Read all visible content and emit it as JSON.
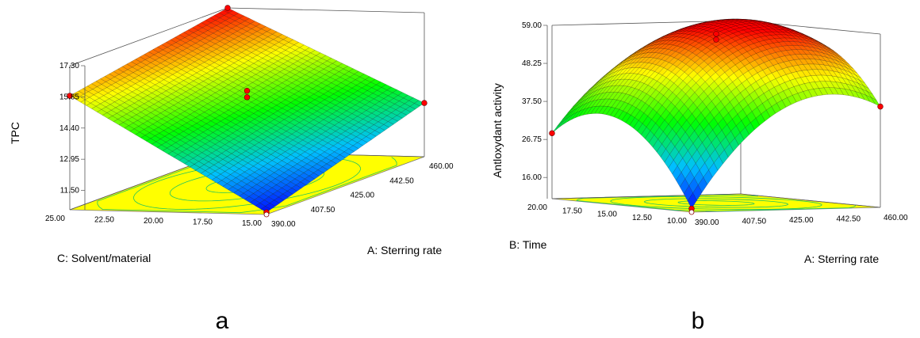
{
  "panels": [
    {
      "label": "a"
    },
    {
      "label": "b"
    }
  ],
  "chart_data": [
    {
      "type": "surface3d",
      "title": "",
      "zlabel": "TPC",
      "xlabel": "A: Sterring rate",
      "ylabel": "C: Solvent/material",
      "x_ticks": [
        "390.00",
        "407.50",
        "425.00",
        "442.50",
        "460.00"
      ],
      "y_ticks": [
        "15.00",
        "17.50",
        "20.00",
        "22.50",
        "25.00"
      ],
      "z_ticks": [
        "11.50",
        "12.95",
        "14.40",
        "15.85",
        "17.30"
      ],
      "xlim": [
        390,
        460
      ],
      "ylim": [
        15,
        25
      ],
      "zlim": [
        10.6,
        17.3
      ],
      "surface": {
        "corners": {
          "x390_y15": 10.7,
          "x390_y25": 15.9,
          "x460_y15": 13.1,
          "x460_y25": 17.3
        },
        "peak": 17.3
      },
      "design_points": [
        {
          "x": 390,
          "y": 15,
          "z": 10.7
        },
        {
          "x": 390,
          "y": 25,
          "z": 15.9
        },
        {
          "x": 460,
          "y": 15,
          "z": 13.1
        },
        {
          "x": 460,
          "y": 25,
          "z": 17.3
        },
        {
          "x": 425,
          "y": 20,
          "z": 14.9
        },
        {
          "x": 425,
          "y": 20,
          "z": 14.6
        }
      ],
      "colormap": [
        "#0000ff",
        "#00c0ff",
        "#00ff00",
        "#ffff00",
        "#ff0000"
      ],
      "floor_color": "#ffff00",
      "contour_color": "#22c55e",
      "point_color": "#ff0000"
    },
    {
      "type": "surface3d",
      "title": "",
      "zlabel": "Antloxydant activity",
      "xlabel": "A: Sterring rate",
      "ylabel": "B: Time",
      "x_ticks": [
        "390.00",
        "407.50",
        "425.00",
        "442.50",
        "460.00"
      ],
      "y_ticks": [
        "10.00",
        "12.50",
        "15.00",
        "17.50",
        "20.00"
      ],
      "z_ticks": [
        "16.00",
        "26.75",
        "37.50",
        "48.25",
        "59.00"
      ],
      "xlim": [
        390,
        460
      ],
      "ylim": [
        10,
        20
      ],
      "zlim": [
        10,
        59
      ],
      "surface": {
        "corners": {
          "x390_y10": 11.0,
          "x390_y20": 28.5,
          "x460_y10": 38.5,
          "x460_y20": 44.0
        },
        "peak": 59.0
      },
      "design_points": [
        {
          "x": 390,
          "y": 10,
          "z": 11.0
        },
        {
          "x": 390,
          "y": 20,
          "z": 28.5
        },
        {
          "x": 460,
          "y": 10,
          "z": 38.5
        },
        {
          "x": 425,
          "y": 15,
          "z": 57.8
        },
        {
          "x": 425,
          "y": 15,
          "z": 56.2
        }
      ],
      "colormap": [
        "#0000ff",
        "#00c0ff",
        "#00ff00",
        "#ffff00",
        "#ff0000"
      ],
      "floor_color": "#ffff00",
      "contour_color": "#22c55e",
      "point_color": "#ff0000"
    }
  ]
}
